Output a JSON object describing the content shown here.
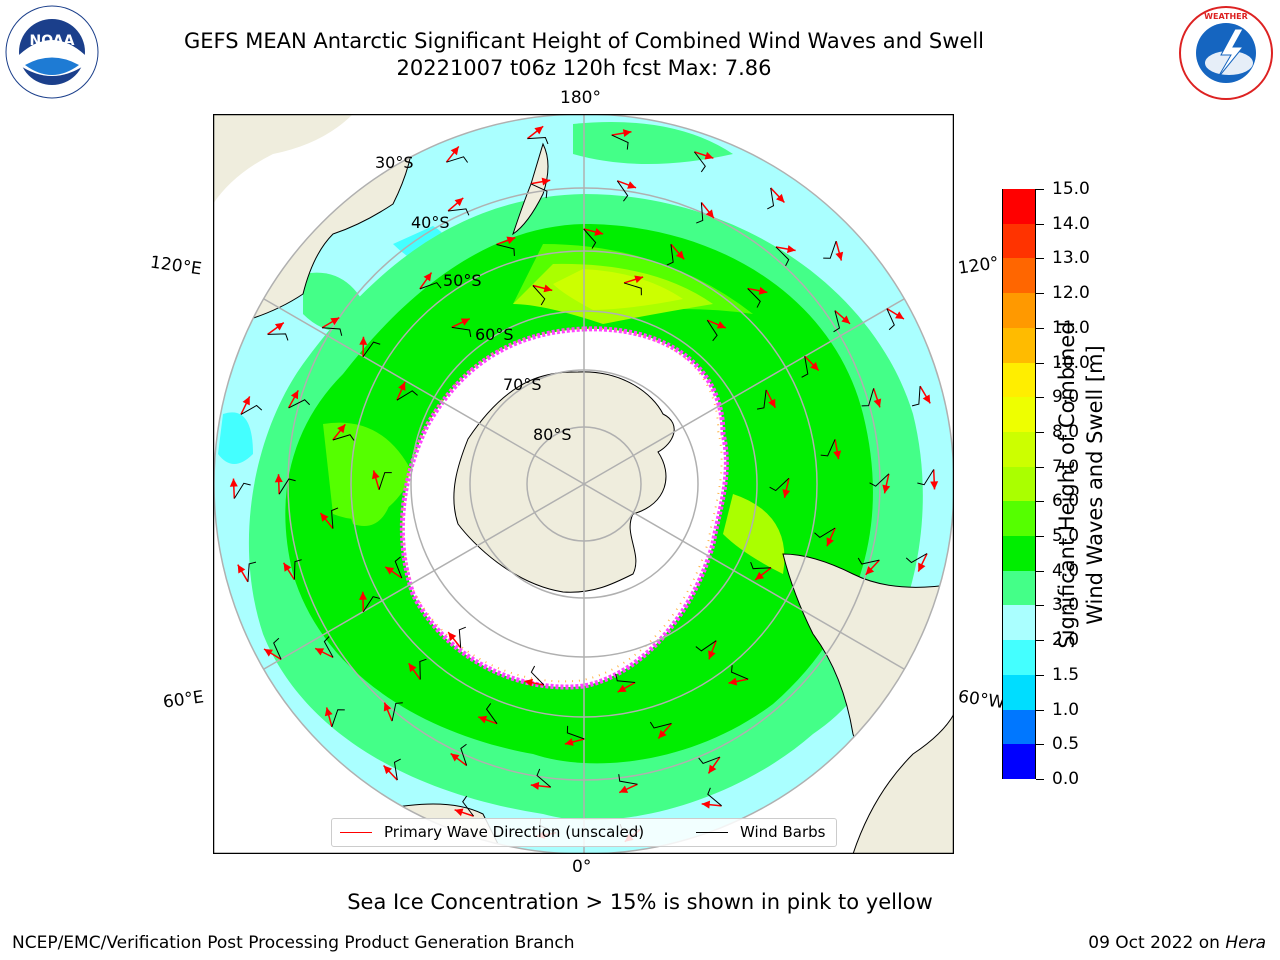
{
  "header": {
    "title_line1": "GEFS MEAN Antarctic Significant Height of Combined Wind Waves and Swell",
    "title_line2": "20221007 t06z 120h fcst   Max: 7.86"
  },
  "logos": {
    "left": {
      "icon": "noaa-logo",
      "text": "NOAA",
      "ring_text": "NATIONAL OCEANIC AND ATMOSPHERIC ADMINISTRATION · U.S. DEPARTMENT OF COMMERCE"
    },
    "right": {
      "icon": "nws-logo",
      "ring_text": "NATIONAL WEATHER SERVICE"
    }
  },
  "map": {
    "projection": "south-polar-stereographic",
    "lon_labels": {
      "top": "180°",
      "bottom": "0°",
      "left_upper": "120°E",
      "left_lower": "60°E",
      "right_upper": "120°",
      "right_lower": "60°W"
    },
    "lat_labels": [
      "30°S",
      "40°S",
      "50°S",
      "60°S",
      "70°S",
      "80°S"
    ],
    "max_value": 7.86,
    "colors": {
      "land": "#efeddd",
      "ice_edge": "#ff44ff",
      "ice_fringe": "#ffb347",
      "wave_arrow": "#ff0000",
      "wind_barb": "#000000"
    }
  },
  "colorbar": {
    "title_line1": "Significant Height of Combined",
    "title_line2": "Wind Waves and Swell [m]",
    "ticks": [
      "0.0",
      "0.5",
      "1.0",
      "1.5",
      "2.0",
      "3.0",
      "4.0",
      "5.0",
      "6.0",
      "7.0",
      "8.0",
      "9.0",
      "10.0",
      "11.0",
      "12.0",
      "13.0",
      "14.0",
      "15.0"
    ],
    "bin_colors": [
      "#0000ff",
      "#0077ff",
      "#00ddff",
      "#44ffff",
      "#aaffff",
      "#44ff88",
      "#00ee00",
      "#55ff00",
      "#aaff00",
      "#ccff00",
      "#eeff00",
      "#ffee00",
      "#ffbb00",
      "#ff9900",
      "#ff6600",
      "#ff3300",
      "#ff0000"
    ]
  },
  "legend": {
    "items": [
      {
        "label": "Primary Wave Direction (unscaled)",
        "color": "#ff0000"
      },
      {
        "label": "Wind Barbs",
        "color": "#000000"
      }
    ]
  },
  "caption": "Sea Ice Concentration > 15% is shown in pink to yellow",
  "footer": {
    "left": "NCEP/EMC/Verification Post Processing Product Generation Branch",
    "right_date": "09 Oct 2022 on ",
    "right_machine": "Hera"
  }
}
